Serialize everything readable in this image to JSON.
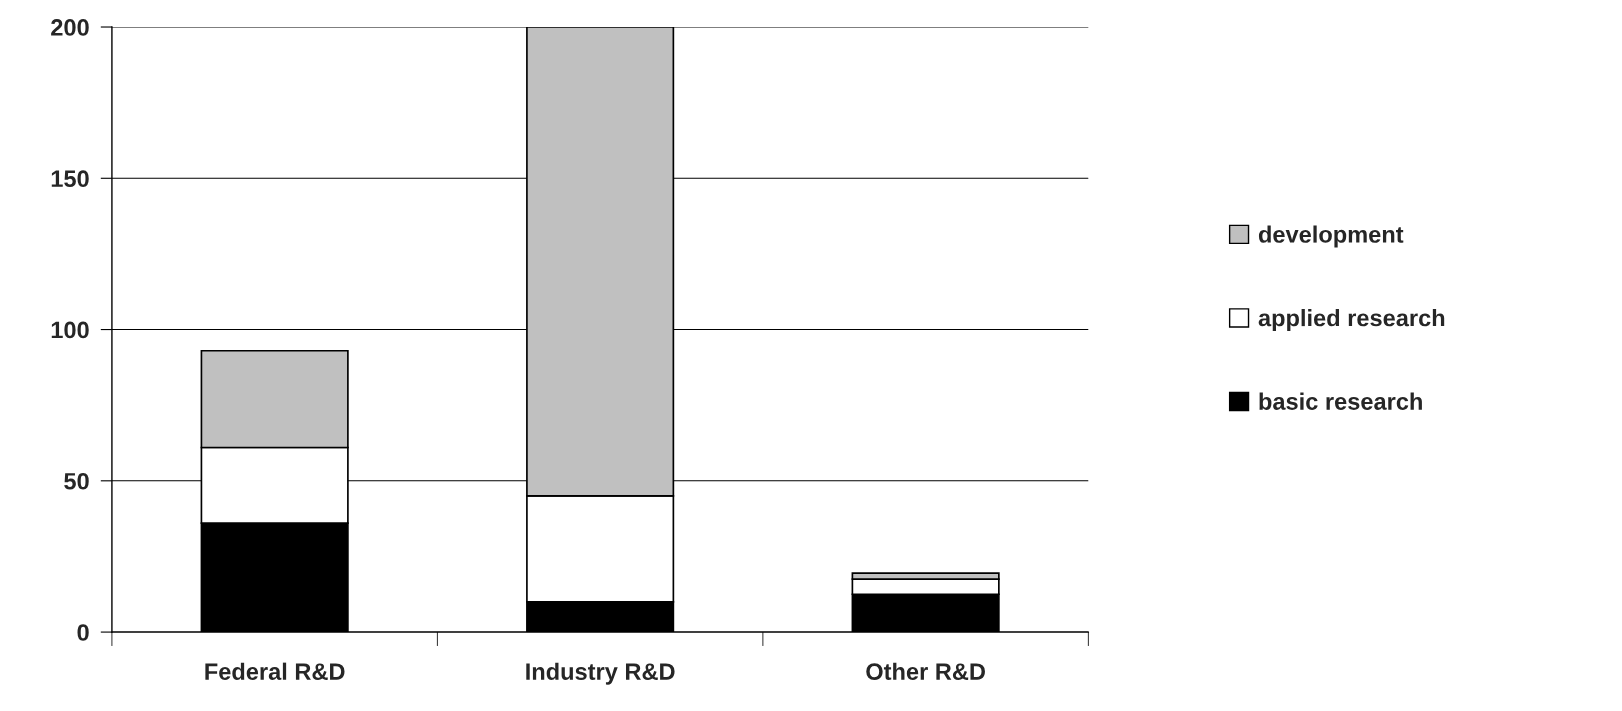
{
  "chart_data": {
    "type": "bar",
    "stacked": true,
    "categories": [
      "Federal R&D",
      "Industry R&D",
      "Other R&D"
    ],
    "series": [
      {
        "name": "basic research",
        "color": "#000000",
        "values": [
          36,
          10,
          12.5
        ]
      },
      {
        "name": "applied research",
        "color": "#ffffff",
        "values": [
          25,
          35,
          5
        ]
      },
      {
        "name": "development",
        "color": "#c0c0c0",
        "values": [
          32,
          155,
          2
        ]
      }
    ],
    "ylim": [
      0,
      200
    ],
    "yticks": [
      0,
      50,
      100,
      150,
      200
    ],
    "grid": "y",
    "legend": "right"
  }
}
